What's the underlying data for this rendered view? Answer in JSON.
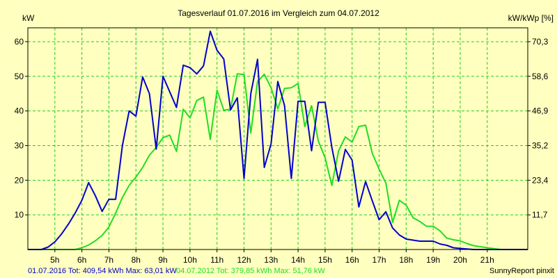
{
  "colors": {
    "background": "#ffffc0",
    "plot_background": "#ffffc0",
    "grid": "#22cc22",
    "series_2016": "#0000cc",
    "series_2012": "#22dd22"
  },
  "chart_data": {
    "type": "line",
    "title": "Tagesverlauf 01.07.2016 im Vergleich zum 04.07.2012",
    "ylabel_left": "kW",
    "ylabel_right": "kW/kWp [%]",
    "xlim": [
      4,
      22.5
    ],
    "ylim": [
      0,
      64
    ],
    "grid": true,
    "x_ticks": [
      {
        "value": 5,
        "label": "5h"
      },
      {
        "value": 6,
        "label": "6h"
      },
      {
        "value": 7,
        "label": "7h"
      },
      {
        "value": 8,
        "label": "8h"
      },
      {
        "value": 9,
        "label": "9h"
      },
      {
        "value": 10,
        "label": "10h"
      },
      {
        "value": 11,
        "label": "11h"
      },
      {
        "value": 12,
        "label": "12h"
      },
      {
        "value": 13,
        "label": "13h"
      },
      {
        "value": 14,
        "label": "14h"
      },
      {
        "value": 15,
        "label": "15h"
      },
      {
        "value": 16,
        "label": "16h"
      },
      {
        "value": 17,
        "label": "17h"
      },
      {
        "value": 18,
        "label": "18h"
      },
      {
        "value": 19,
        "label": "19h"
      },
      {
        "value": 20,
        "label": "20h"
      },
      {
        "value": 21,
        "label": "21h"
      }
    ],
    "y_ticks_left": [
      {
        "value": 10,
        "label": "10"
      },
      {
        "value": 20,
        "label": "20"
      },
      {
        "value": 30,
        "label": "30"
      },
      {
        "value": 40,
        "label": "40"
      },
      {
        "value": 50,
        "label": "50"
      },
      {
        "value": 60,
        "label": "60"
      }
    ],
    "y_ticks_right": [
      {
        "value": 10,
        "label": "11,7"
      },
      {
        "value": 20,
        "label": "23,4"
      },
      {
        "value": 30,
        "label": "35,2"
      },
      {
        "value": 40,
        "label": "46,9"
      },
      {
        "value": 50,
        "label": "58,6"
      },
      {
        "value": 60,
        "label": "70,3"
      }
    ],
    "series": [
      {
        "key": "s2016",
        "x": [
          4,
          4.5,
          4.75,
          5,
          5.25,
          5.5,
          5.75,
          6,
          6.25,
          6.5,
          6.75,
          7,
          7.25,
          7.5,
          7.75,
          8,
          8.25,
          8.5,
          8.75,
          9,
          9.25,
          9.5,
          9.75,
          10,
          10.25,
          10.5,
          10.75,
          11,
          11.25,
          11.5,
          11.75,
          12,
          12.25,
          12.5,
          12.75,
          13,
          13.25,
          13.5,
          13.75,
          14,
          14.25,
          14.5,
          14.75,
          15,
          15.25,
          15.5,
          15.75,
          16,
          16.25,
          16.5,
          16.75,
          17,
          17.25,
          17.5,
          17.75,
          18,
          18.25,
          18.5,
          18.75,
          19,
          19.25,
          19.5,
          19.75,
          20,
          20.5,
          21,
          21.5,
          22.5
        ],
        "y": [
          0,
          0,
          0.7,
          2.2,
          4.5,
          7.3,
          10.5,
          14.2,
          19.3,
          15.5,
          11,
          14.5,
          14.5,
          30,
          40,
          38.5,
          49.8,
          45,
          29,
          50,
          45.5,
          41,
          53.2,
          52.5,
          50.7,
          53,
          63,
          57.5,
          55,
          40.3,
          43.8,
          20.5,
          45,
          54.9,
          23.7,
          30.5,
          48.5,
          41.5,
          20.5,
          42.8,
          42.8,
          28.5,
          42.5,
          42.5,
          29.5,
          19.7,
          28.9,
          25.8,
          12.3,
          19.6,
          14,
          8.6,
          10.9,
          6.2,
          4.2,
          3,
          2.7,
          2.4,
          2.4,
          2.4,
          1.6,
          1.2,
          0.5,
          0.3,
          0,
          0,
          0,
          0
        ]
      },
      {
        "key": "s2012",
        "x": [
          4,
          5.25,
          5.75,
          6,
          6.25,
          6.5,
          6.75,
          7,
          7.25,
          7.5,
          7.75,
          8,
          8.25,
          8.5,
          8.75,
          9,
          9.25,
          9.5,
          9.75,
          10,
          10.25,
          10.5,
          10.75,
          11,
          11.25,
          11.5,
          11.75,
          12,
          12.25,
          12.5,
          12.75,
          13,
          13.25,
          13.5,
          13.75,
          14,
          14.25,
          14.5,
          14.75,
          15,
          15.25,
          15.5,
          15.75,
          16,
          16.25,
          16.5,
          16.75,
          17,
          17.25,
          17.5,
          17.75,
          18,
          18.25,
          18.5,
          18.75,
          19,
          19.25,
          19.5,
          19.75,
          20,
          20.25,
          20.5,
          21,
          21.5,
          22.5
        ],
        "y": [
          0,
          0,
          0,
          0.5,
          1.3,
          2.5,
          4.1,
          6.5,
          10.5,
          15,
          18.5,
          20.9,
          23.7,
          27.2,
          29.5,
          32.3,
          33,
          28.3,
          40.5,
          38,
          43,
          44,
          31.8,
          46,
          40.2,
          40.5,
          50.7,
          50.5,
          33.6,
          48.5,
          50.6,
          46.7,
          40.6,
          46.5,
          46.7,
          47.9,
          35.5,
          41.5,
          31.3,
          26.5,
          18.5,
          28.5,
          32.5,
          31,
          35.5,
          35.9,
          27.7,
          23.2,
          19.2,
          7.8,
          14.2,
          12.8,
          9.2,
          8.1,
          6.7,
          6.7,
          5.4,
          3.3,
          2.8,
          2.5,
          1.7,
          1.1,
          0.5,
          0,
          0
        ]
      }
    ]
  },
  "footer": {
    "left_2016": "01.07.2016 Tot: 409,54 kWh Max: 63,01 kW",
    "left_2012": "04.07.2012 Tot: 379,85 kWh Max: 51,76 kW",
    "right": "SunnyReport pinxit"
  }
}
